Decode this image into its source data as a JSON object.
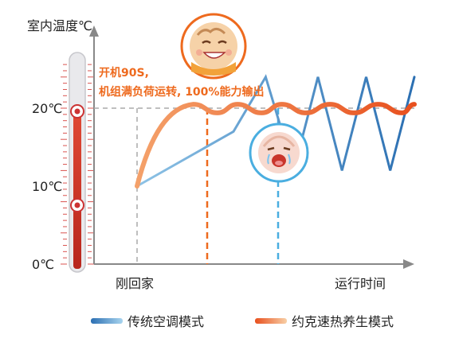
{
  "chart_data": {
    "type": "line",
    "ylabel": "室内温度℃",
    "xlabel": "运行时间",
    "y_ticks": [
      "0℃",
      "10℃",
      "20℃"
    ],
    "x_markers": [
      "刚回家"
    ],
    "ylim": [
      0,
      26
    ],
    "annotation": {
      "line1": "开机90S,",
      "line2": "机组满负荷运转, 100%能力输出"
    },
    "series": [
      {
        "name": "传统空调模式",
        "color_start": "#7fb6dd",
        "color_end": "#2b6fb2",
        "x": [
          0,
          1.2,
          1.6,
          1.95,
          2.25,
          2.55,
          2.85,
          3.15,
          3.45
        ],
        "values": [
          10,
          17,
          24,
          12,
          24,
          12,
          24,
          12,
          24
        ]
      },
      {
        "name": "约克速热养生模式",
        "color_start": "#f7b98a",
        "color_end": "#e8501e",
        "x": [
          0,
          0.35,
          0.7,
          1.0,
          1.25,
          1.55,
          1.8,
          2.1,
          2.4,
          2.7,
          3.0,
          3.3,
          3.45
        ],
        "values": [
          10,
          17,
          20.5,
          19.4,
          20.5,
          19.4,
          20.5,
          19.4,
          20.5,
          19.4,
          20.5,
          19.4,
          20.5
        ]
      }
    ]
  },
  "colors": {
    "axis": "#888888",
    "dash_gray": "#aaaaaa",
    "dash_orange": "#ee6a1e",
    "dash_blue": "#4aaee0",
    "annotation_text": "#ee6a1e",
    "thermometer_red": "#d63a2a"
  },
  "icons": [
    "happy-baby-icon",
    "crying-baby-icon",
    "thermometer-icon"
  ]
}
